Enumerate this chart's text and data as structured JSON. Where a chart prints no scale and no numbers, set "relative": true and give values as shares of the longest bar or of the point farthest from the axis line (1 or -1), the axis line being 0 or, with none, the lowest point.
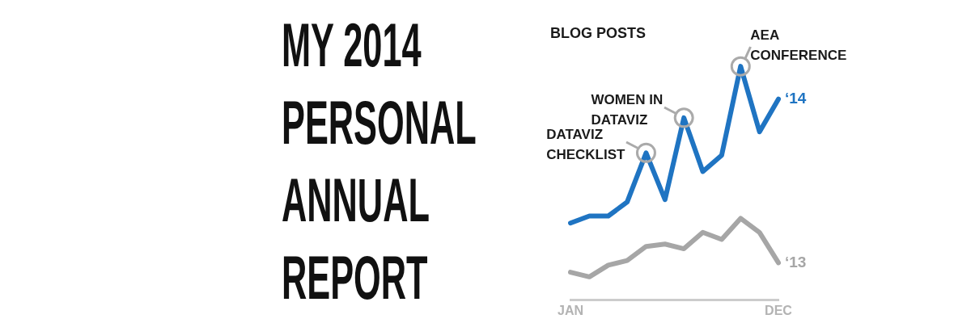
{
  "chart_data": {
    "type": "line",
    "title": "MY 2014 PERSONAL ANNUAL REPORT",
    "subtitle": "BLOG POSTS",
    "categories": [
      "JAN",
      null,
      null,
      null,
      null,
      null,
      null,
      null,
      null,
      null,
      null,
      "DEC"
    ],
    "relative": true,
    "series": [
      {
        "name": "‘14",
        "color": "#1f74c2",
        "values": [
          0.33,
          0.36,
          0.36,
          0.42,
          0.63,
          0.43,
          0.78,
          0.55,
          0.62,
          1,
          0.72,
          0.86
        ]
      },
      {
        "name": "‘13",
        "color": "#a6a6a6",
        "values": [
          0.12,
          0.1,
          0.15,
          0.17,
          0.23,
          0.24,
          0.22,
          0.29,
          0.26,
          0.35,
          0.29,
          0.16
        ]
      }
    ],
    "annotations": [
      "DATAVIZ CHECKLIST",
      "WOMEN IN DATAVIZ",
      "AEA CONFERENCE"
    ]
  }
}
